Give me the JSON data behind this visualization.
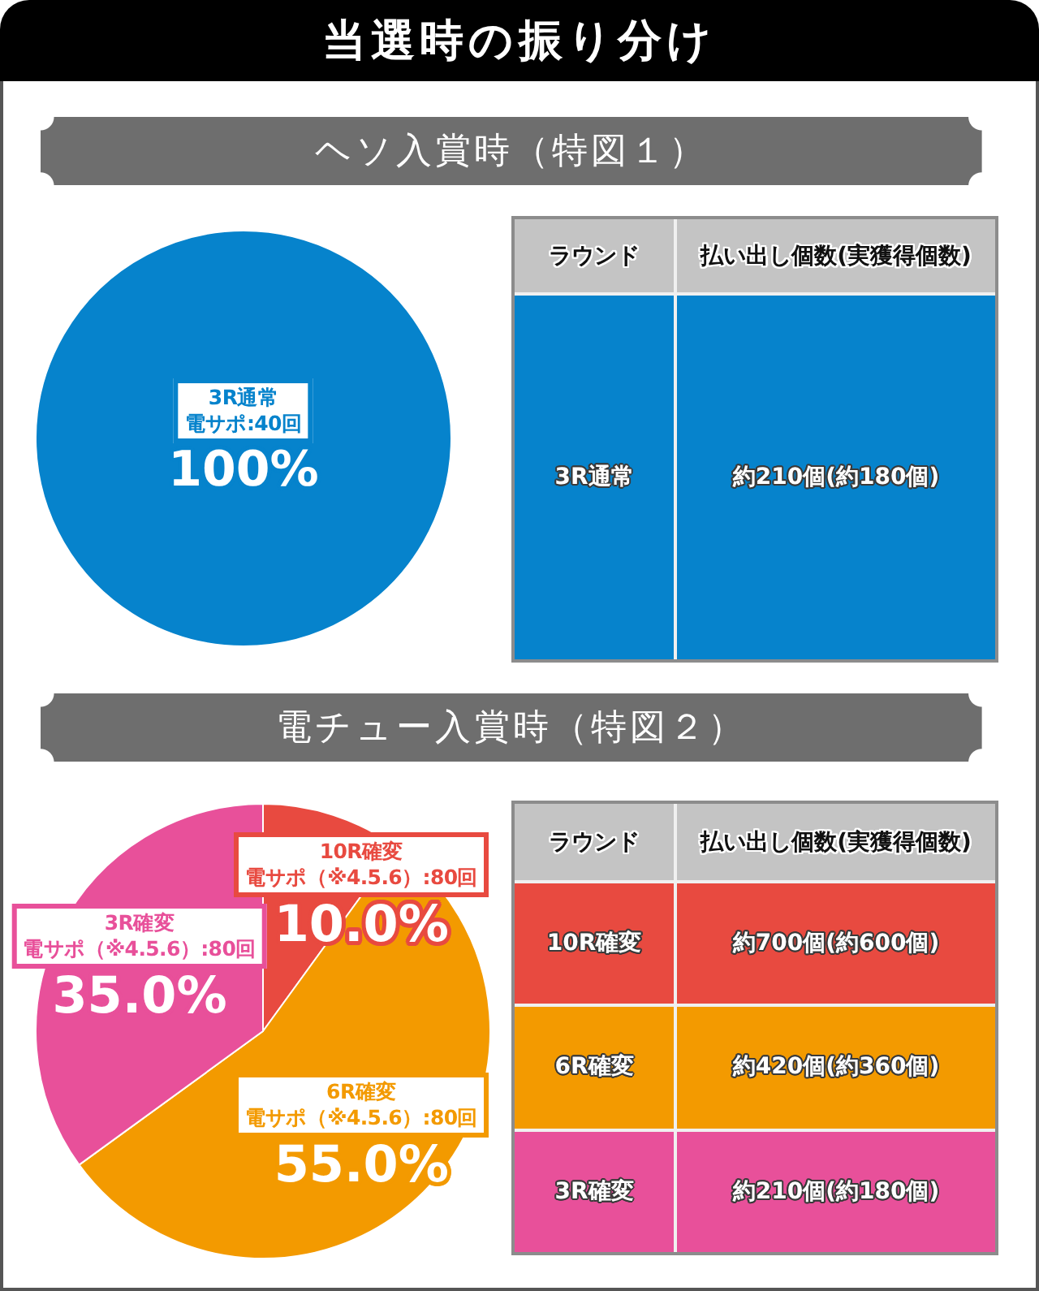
{
  "chart_data": [
    {
      "type": "other",
      "title": "当選時の振り分け"
    },
    {
      "type": "pie",
      "title": "ヘソ入賞時（特図１）",
      "categories": [
        "3R通常"
      ],
      "annotations": [
        "電サポ:40回"
      ],
      "values": [
        100
      ],
      "colors": [
        "#0683cc"
      ],
      "value_labels": [
        "100%"
      ]
    },
    {
      "type": "other",
      "annotations": [
        "ラウンド",
        "払い出し個数(実獲得個数)"
      ],
      "categories": [
        "3R通常"
      ],
      "value_labels": [
        "約210個(約180個)"
      ],
      "colors": [
        "#0683cc"
      ]
    },
    {
      "type": "pie",
      "title": "電チュー入賞時（特図２）",
      "categories": [
        "10R確変",
        "6R確変",
        "3R確変"
      ],
      "annotations": [
        "電サポ（※4.5.6）:80回",
        "電サポ（※4.5.6）:80回",
        "電サポ（※4.5.6）:80回"
      ],
      "values": [
        10,
        55,
        35
      ],
      "colors": [
        "#e84a40",
        "#f39a00",
        "#e8509a"
      ],
      "value_labels": [
        "10.0%",
        "55.0%",
        "35.0%"
      ]
    },
    {
      "type": "other",
      "annotations": [
        "ラウンド",
        "払い出し個数(実獲得個数)"
      ],
      "categories": [
        "10R確変",
        "6R確変",
        "3R確変"
      ],
      "value_labels": [
        "約700個(約600個)",
        "約420個(約360個)",
        "約210個(約180個)"
      ],
      "colors": [
        "#e84a40",
        "#f39a00",
        "#e8509a"
      ]
    }
  ]
}
